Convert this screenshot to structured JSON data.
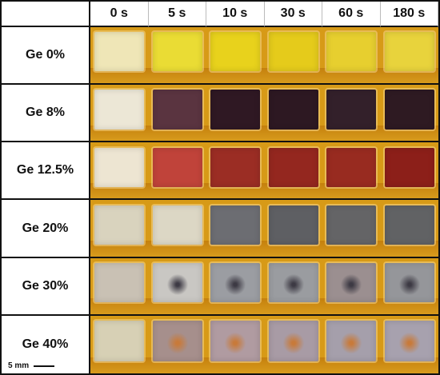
{
  "columns": [
    "0 s",
    "5 s",
    "10 s",
    "30 s",
    "60 s",
    "180 s"
  ],
  "rows": [
    {
      "label": "Ge 0%",
      "colors": [
        "#efe6b7",
        "#eadc34",
        "#e8d21c",
        "#e5cb1b",
        "#e7cf2f",
        "#e8d33c"
      ],
      "center_spot": [
        false,
        false,
        false,
        false,
        false,
        false
      ]
    },
    {
      "label": "Ge 8%",
      "colors": [
        "#ece7d6",
        "#5a3440",
        "#2f1823",
        "#2d1822",
        "#33202a",
        "#2e1a22"
      ],
      "center_spot": [
        false,
        false,
        false,
        false,
        false,
        false
      ]
    },
    {
      "label": "Ge 12.5%",
      "colors": [
        "#ede5d2",
        "#c0433a",
        "#9b2d24",
        "#94271f",
        "#982b20",
        "#8c1f19"
      ],
      "center_spot": [
        false,
        false,
        false,
        false,
        false,
        false
      ]
    },
    {
      "label": "Ge 20%",
      "colors": [
        "#d9d3be",
        "#dcd7c5",
        "#6c6d72",
        "#5e5f63",
        "#646466",
        "#616264"
      ],
      "center_spot": [
        false,
        false,
        false,
        false,
        false,
        false
      ]
    },
    {
      "label": "Ge 30%",
      "colors": [
        "#c9c1b4",
        "#c9c7c3",
        "#9b9da2",
        "#9a9ca0",
        "#9b8f90",
        "#95969a"
      ],
      "center_spot": [
        false,
        true,
        true,
        true,
        true,
        true
      ]
    },
    {
      "label": "Ge 40%",
      "colors": [
        "#d7d0b5",
        "#a68f8c",
        "#b09ba1",
        "#a89ba5",
        "#a59fab",
        "#a7a1ae"
      ],
      "center_spot": [
        false,
        true,
        true,
        true,
        true,
        true
      ]
    }
  ],
  "scale_bar": {
    "label": "5 mm"
  }
}
